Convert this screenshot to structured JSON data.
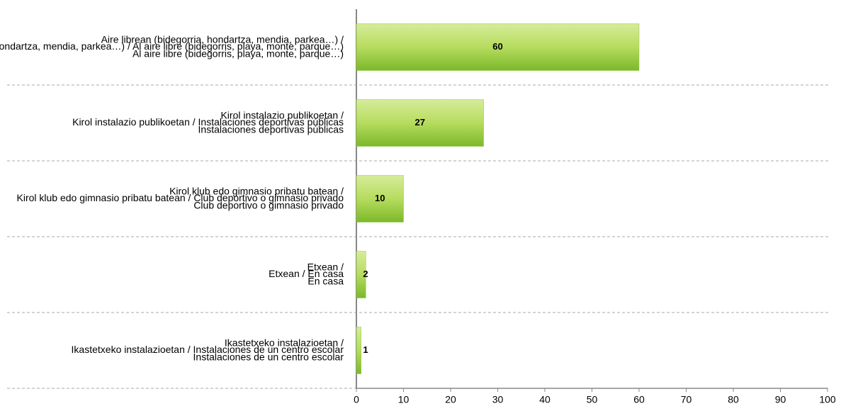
{
  "chart_data": {
    "type": "bar",
    "orientation": "horizontal",
    "categories": [
      "Aire librean (bidegorria, hondartza, mendia, parkea…) /\nAl aire libre (bidegorris, playa, monte, parque…)",
      "Kirol instalazio publikoetan /\nInstalaciones deportivas públicas",
      "Kirol klub edo gimnasio pribatu batean /\nClub deportivo o gimnasio privado",
      "Etxean /\nEn casa",
      "Ikastetxeko instalazioetan /\nInstalaciones de un centro escolar"
    ],
    "values": [
      60,
      27,
      10,
      2,
      1
    ],
    "color": "#8cc63f",
    "xlim": [
      0,
      100
    ],
    "xticks": [
      0,
      10,
      20,
      30,
      40,
      50,
      60,
      70,
      80,
      90,
      100
    ],
    "grid": false
  }
}
